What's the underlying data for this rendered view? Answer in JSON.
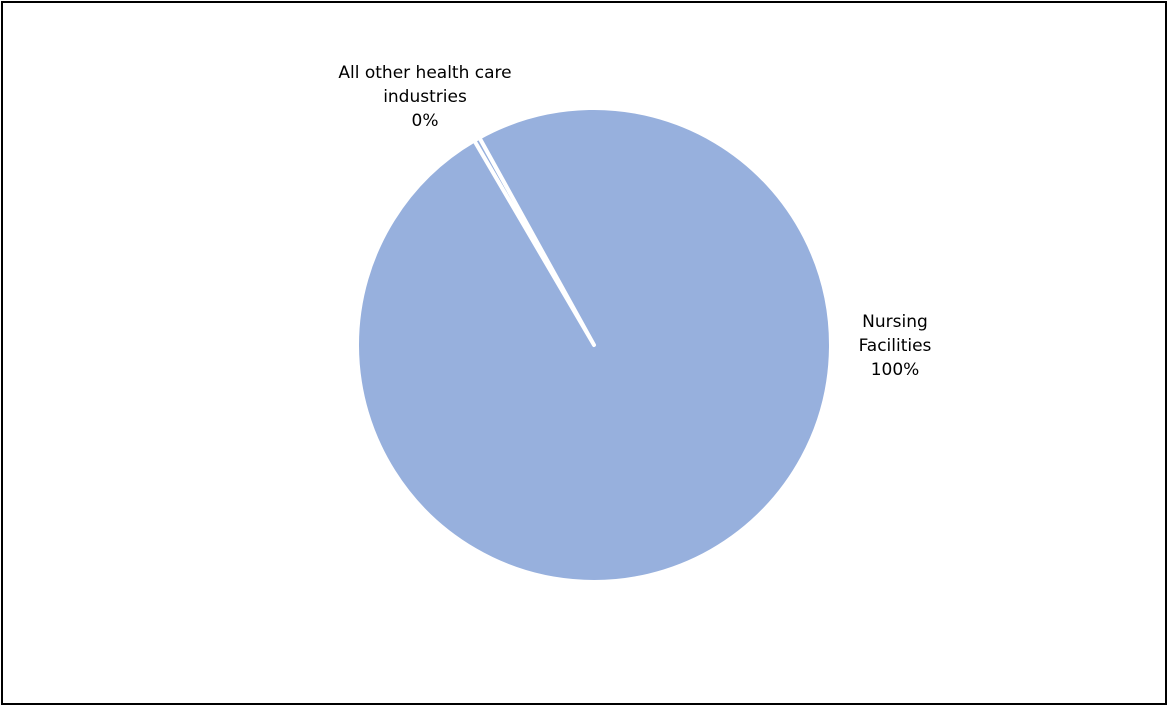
{
  "chart_data": {
    "type": "pie",
    "title": "",
    "slices": [
      {
        "name": "Nursing Facilities",
        "value": 99.6,
        "label_lines": [
          "Nursing",
          "Facilities",
          "100%"
        ],
        "color": "#97B0DD"
      },
      {
        "name": "All other health care industries",
        "value": 0.4,
        "label_lines": [
          "All other health care",
          "industries",
          "0%"
        ],
        "color": "#97B0DD"
      }
    ],
    "slice_border_color": "#FFFFFF",
    "legend": "none"
  }
}
